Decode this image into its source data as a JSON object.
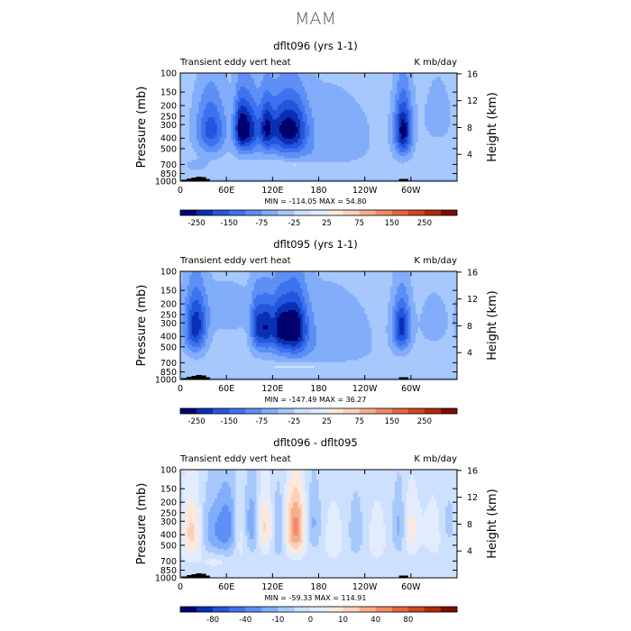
{
  "page": {
    "title": "MAM"
  },
  "colors": {
    "cool": [
      "#00006e",
      "#0a2fb4",
      "#2356db",
      "#3d73ef",
      "#5d8ff5",
      "#82adfa",
      "#a7c8fc",
      "#cde0fd",
      "#e2ecfe"
    ],
    "warm": [
      "#fde9dc",
      "#fbd1bb",
      "#f6ad8c",
      "#f08a64",
      "#e4653d",
      "#cf4621",
      "#ad2a0e",
      "#7a0d03"
    ],
    "topography": "#000000"
  },
  "chart_data": [
    {
      "type": "heatmap",
      "title": "dflt096 (yrs 1-1)",
      "subtitle_left": "Transient eddy vert heat",
      "subtitle_right": "K mb/day",
      "xlabel": "",
      "ylabel": "Pressure (mb)",
      "ylabel_right": "Height (km)",
      "x_ticks": [
        "0",
        "60E",
        "120E",
        "180",
        "120W",
        "60W"
      ],
      "x_tick_values": [
        0,
        60,
        120,
        180,
        240,
        300
      ],
      "xlim": [
        0,
        360
      ],
      "y_ticks": [
        "100",
        "150",
        "200",
        "250",
        "300",
        "400",
        "500",
        "700",
        "850",
        "1000"
      ],
      "y_tick_values": [
        100,
        150,
        200,
        250,
        300,
        400,
        500,
        700,
        850,
        1000
      ],
      "ylim": [
        1000,
        100
      ],
      "height_ticks": [
        "4",
        "8",
        "12",
        "16"
      ],
      "height_tick_values": [
        4,
        8,
        12,
        16
      ],
      "stats": "MIN = -114.05   MAX =  54.80",
      "min": -114.05,
      "max": 54.8,
      "colorbar_ticks": [
        "-250",
        "-150",
        "-75",
        "-25",
        "25",
        "75",
        "150",
        "250"
      ],
      "field": {
        "background": 6,
        "features": [
          {
            "lon": 40,
            "p": 330,
            "wl": 14,
            "wp": 150,
            "amp": -4
          },
          {
            "lon": 78,
            "p": 320,
            "wl": 6,
            "wp": 130,
            "amp": -4
          },
          {
            "lon": 90,
            "p": 330,
            "wl": 10,
            "wp": 140,
            "amp": -5
          },
          {
            "lon": 112,
            "p": 320,
            "wl": 6,
            "wp": 130,
            "amp": -4
          },
          {
            "lon": 130,
            "p": 330,
            "wl": 12,
            "wp": 140,
            "amp": -4
          },
          {
            "lon": 150,
            "p": 330,
            "wl": 12,
            "wp": 140,
            "amp": -4
          },
          {
            "lon": 290,
            "p": 340,
            "wl": 8,
            "wp": 150,
            "amp": -6
          },
          {
            "lon": 190,
            "p": 300,
            "wl": 45,
            "wp": 150,
            "amp": -1
          },
          {
            "lon": 180,
            "p": 560,
            "wl": 45,
            "wp": 110,
            "amp": -1
          },
          {
            "lon": 335,
            "p": 250,
            "wl": 14,
            "wp": 120,
            "amp": -1
          },
          {
            "lon": 20,
            "p": 720,
            "wl": 10,
            "wp": 60,
            "amp": -1
          },
          {
            "lon": 180,
            "p": 970,
            "wl": 200,
            "wp": 25,
            "amp": -1
          },
          {
            "lon": 150,
            "p": 700,
            "wl": 25,
            "wp": 40,
            "amp": 1
          }
        ]
      },
      "topography": [
        {
          "lon": 5,
          "height": 0.3
        },
        {
          "lon": 12,
          "height": 0.6
        },
        {
          "lon": 18,
          "height": 0.8
        },
        {
          "lon": 24,
          "height": 1.0
        },
        {
          "lon": 30,
          "height": 0.9
        },
        {
          "lon": 35,
          "height": 0.5
        },
        {
          "lon": 288,
          "height": 0.5
        },
        {
          "lon": 293,
          "height": 0.5
        }
      ]
    },
    {
      "type": "heatmap",
      "title": "dflt095 (yrs 1-1)",
      "subtitle_left": "Transient eddy vert heat",
      "subtitle_right": "K mb/day",
      "xlabel": "",
      "ylabel": "Pressure (mb)",
      "ylabel_right": "Height (km)",
      "x_ticks": [
        "0",
        "60E",
        "120E",
        "180",
        "120W",
        "60W"
      ],
      "x_tick_values": [
        0,
        60,
        120,
        180,
        240,
        300
      ],
      "xlim": [
        0,
        360
      ],
      "y_ticks": [
        "100",
        "150",
        "200",
        "250",
        "300",
        "400",
        "500",
        "700",
        "850",
        "1000"
      ],
      "y_tick_values": [
        100,
        150,
        200,
        250,
        300,
        400,
        500,
        700,
        850,
        1000
      ],
      "ylim": [
        1000,
        100
      ],
      "height_ticks": [
        "4",
        "8",
        "12",
        "16"
      ],
      "height_tick_values": [
        4,
        8,
        12,
        16
      ],
      "stats": "MIN = -147.49   MAX =  36.27",
      "min": -147.49,
      "max": 36.27,
      "colorbar_ticks": [
        "-250",
        "-150",
        "-75",
        "-25",
        "25",
        "75",
        "150",
        "250"
      ],
      "field": {
        "background": 6,
        "features": [
          {
            "lon": 20,
            "p": 330,
            "wl": 10,
            "wp": 150,
            "amp": -5
          },
          {
            "lon": 100,
            "p": 330,
            "wl": 6,
            "wp": 130,
            "amp": -4
          },
          {
            "lon": 112,
            "p": 330,
            "wl": 6,
            "wp": 130,
            "amp": -4
          },
          {
            "lon": 128,
            "p": 330,
            "wl": 8,
            "wp": 140,
            "amp": -4
          },
          {
            "lon": 148,
            "p": 330,
            "wl": 12,
            "wp": 150,
            "amp": -6
          },
          {
            "lon": 288,
            "p": 330,
            "wl": 8,
            "wp": 130,
            "amp": -5
          },
          {
            "lon": 190,
            "p": 300,
            "wl": 45,
            "wp": 150,
            "amp": -1
          },
          {
            "lon": 180,
            "p": 560,
            "wl": 50,
            "wp": 120,
            "amp": -1
          },
          {
            "lon": 330,
            "p": 300,
            "wl": 14,
            "wp": 120,
            "amp": -1
          },
          {
            "lon": 60,
            "p": 230,
            "wl": 30,
            "wp": 90,
            "amp": -1
          },
          {
            "lon": 180,
            "p": 970,
            "wl": 200,
            "wp": 25,
            "amp": -1
          },
          {
            "lon": 150,
            "p": 760,
            "wl": 30,
            "wp": 40,
            "amp": 1
          }
        ]
      },
      "topography": [
        {
          "lon": 5,
          "height": 0.3
        },
        {
          "lon": 12,
          "height": 0.6
        },
        {
          "lon": 18,
          "height": 0.8
        },
        {
          "lon": 24,
          "height": 1.0
        },
        {
          "lon": 30,
          "height": 0.9
        },
        {
          "lon": 35,
          "height": 0.5
        },
        {
          "lon": 288,
          "height": 0.5
        },
        {
          "lon": 293,
          "height": 0.5
        }
      ]
    },
    {
      "type": "heatmap",
      "title": "dflt096 - dflt095",
      "subtitle_left": "Transient eddy vert heat",
      "subtitle_right": "K mb/day",
      "xlabel": "",
      "ylabel": "Pressure (mb)",
      "ylabel_right": "Height (km)",
      "x_ticks": [
        "0",
        "60E",
        "120E",
        "180",
        "120W",
        "60W"
      ],
      "x_tick_values": [
        0,
        60,
        120,
        180,
        240,
        300
      ],
      "xlim": [
        0,
        360
      ],
      "y_ticks": [
        "100",
        "150",
        "200",
        "250",
        "300",
        "400",
        "500",
        "700",
        "850",
        "1000"
      ],
      "y_tick_values": [
        100,
        150,
        200,
        250,
        300,
        400,
        500,
        700,
        850,
        1000
      ],
      "ylim": [
        1000,
        100
      ],
      "height_ticks": [
        "4",
        "8",
        "12",
        "16"
      ],
      "height_tick_values": [
        4,
        8,
        12,
        16
      ],
      "stats": "MIN = -59.33   MAX = 114.91",
      "min": -59.33,
      "max": 114.91,
      "colorbar_ticks": [
        "-80",
        "-40",
        "-10",
        "0",
        "10",
        "40",
        "80"
      ],
      "field": {
        "background": 7,
        "features": [
          {
            "lon": 15,
            "p": 380,
            "wl": 10,
            "wp": 180,
            "amp": 3
          },
          {
            "lon": 40,
            "p": 360,
            "wl": 12,
            "wp": 160,
            "amp": -2
          },
          {
            "lon": 62,
            "p": 340,
            "wl": 10,
            "wp": 170,
            "amp": -3
          },
          {
            "lon": 80,
            "p": 380,
            "wl": 8,
            "wp": 180,
            "amp": 2
          },
          {
            "lon": 92,
            "p": 330,
            "wl": 8,
            "wp": 160,
            "amp": -3
          },
          {
            "lon": 110,
            "p": 340,
            "wl": 8,
            "wp": 150,
            "amp": 3
          },
          {
            "lon": 128,
            "p": 360,
            "wl": 8,
            "wp": 170,
            "amp": -2
          },
          {
            "lon": 150,
            "p": 340,
            "wl": 10,
            "wp": 170,
            "amp": 5
          },
          {
            "lon": 172,
            "p": 320,
            "wl": 8,
            "wp": 150,
            "amp": -2
          },
          {
            "lon": 200,
            "p": 420,
            "wl": 12,
            "wp": 200,
            "amp": 1
          },
          {
            "lon": 228,
            "p": 380,
            "wl": 10,
            "wp": 200,
            "amp": -1
          },
          {
            "lon": 255,
            "p": 420,
            "wl": 10,
            "wp": 200,
            "amp": 1
          },
          {
            "lon": 285,
            "p": 340,
            "wl": 6,
            "wp": 150,
            "amp": -2
          },
          {
            "lon": 300,
            "p": 360,
            "wl": 8,
            "wp": 150,
            "amp": 2
          },
          {
            "lon": 330,
            "p": 380,
            "wl": 10,
            "wp": 180,
            "amp": 1
          },
          {
            "lon": 350,
            "p": 320,
            "wl": 8,
            "wp": 140,
            "amp": -1
          },
          {
            "lon": 45,
            "p": 700,
            "wl": 12,
            "wp": 70,
            "amp": 1
          }
        ]
      },
      "topography": [
        {
          "lon": 5,
          "height": 0.3
        },
        {
          "lon": 12,
          "height": 0.6
        },
        {
          "lon": 18,
          "height": 0.8
        },
        {
          "lon": 24,
          "height": 1.0
        },
        {
          "lon": 30,
          "height": 0.9
        },
        {
          "lon": 35,
          "height": 0.5
        },
        {
          "lon": 288,
          "height": 0.5
        },
        {
          "lon": 293,
          "height": 0.5
        }
      ]
    }
  ]
}
